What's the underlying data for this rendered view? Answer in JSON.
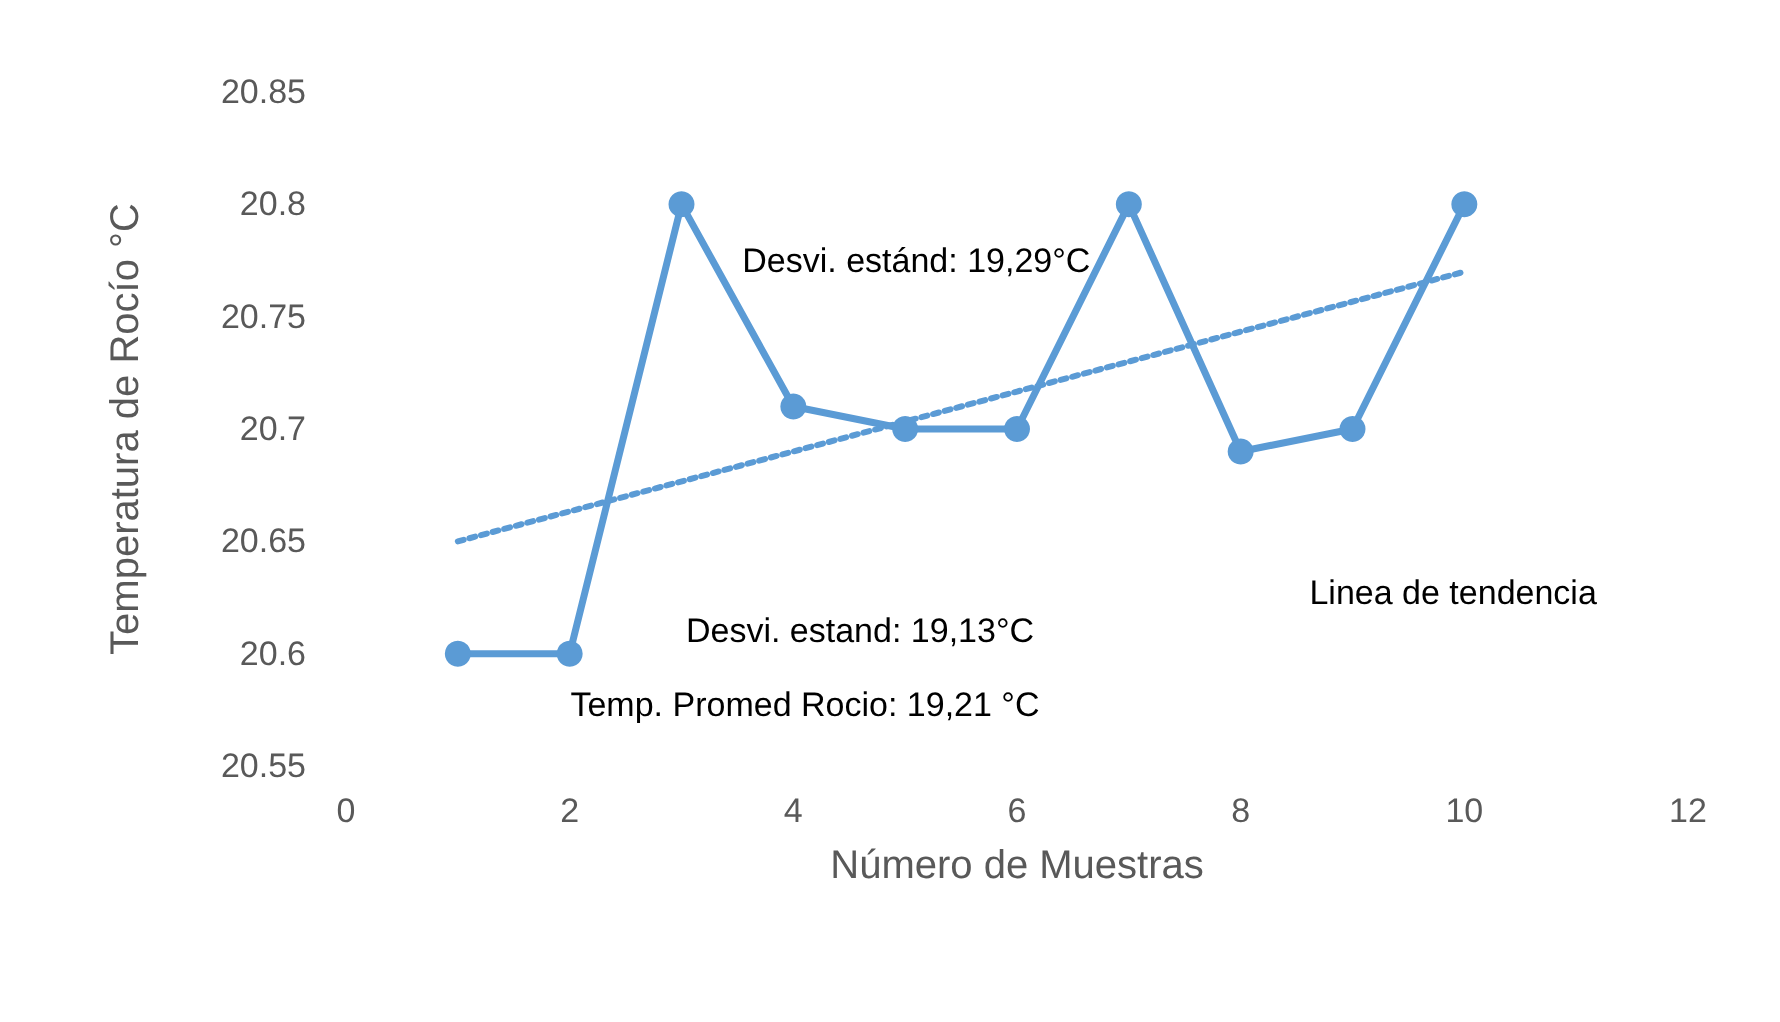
{
  "chart_data": {
    "type": "line",
    "xlabel": "Número de Muestras",
    "ylabel": "Temperatura de Rocío °C",
    "x": [
      1,
      2,
      3,
      4,
      5,
      6,
      7,
      8,
      9,
      10
    ],
    "series": [
      {
        "color": "#5b9bd5",
        "values": [
          20.6,
          20.6,
          20.8,
          20.71,
          20.7,
          20.7,
          20.8,
          20.69,
          20.7,
          20.8
        ],
        "marker": "circle",
        "line_style": "solid"
      },
      {
        "type": "line",
        "color": "#5b9bd5",
        "x": [
          1,
          10
        ],
        "values": [
          20.65,
          20.77
        ],
        "marker": "none",
        "line_style": "dotted"
      }
    ],
    "annotations": [
      "Desvi. estánd: 19,29°C",
      "Desvi. estand: 19,13°C",
      "Temp. Promed Rocio: 19,21 °C",
      "Linea de tendencia"
    ],
    "xlim": [
      0,
      12
    ],
    "xticks": [
      0,
      2,
      4,
      6,
      8,
      10,
      12
    ],
    "ylim": [
      20.55,
      20.85
    ],
    "yticks": [
      20.55,
      20.6,
      20.65,
      20.7,
      20.75,
      20.8,
      20.85
    ],
    "grid": false
  }
}
